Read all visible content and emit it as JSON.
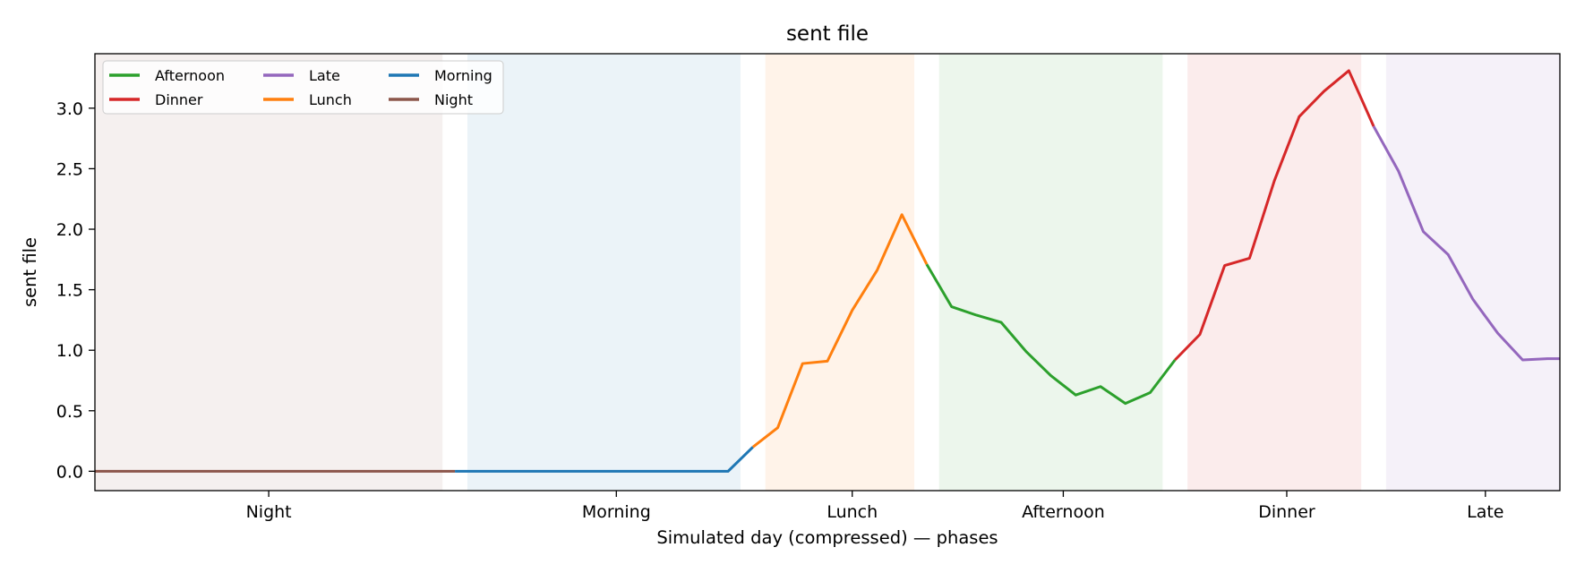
{
  "chart_data": {
    "type": "line",
    "title": "sent file",
    "xlabel": "Simulated day (compressed) — phases",
    "ylabel": "sent file",
    "xlim": [
      -0.5,
      58.5
    ],
    "ylim": [
      -0.16,
      3.45
    ],
    "y_ticks": [
      0.0,
      0.5,
      1.0,
      1.5,
      2.0,
      2.5,
      3.0
    ],
    "y_tick_labels": [
      "0.0",
      "0.5",
      "1.0",
      "1.5",
      "2.0",
      "2.5",
      "3.0"
    ],
    "x_ticks": [
      {
        "label": "Night",
        "x": 6.5
      },
      {
        "label": "Morning",
        "x": 20.5
      },
      {
        "label": "Lunch",
        "x": 30
      },
      {
        "label": "Afternoon",
        "x": 38.5
      },
      {
        "label": "Dinner",
        "x": 47.5
      },
      {
        "label": "Late",
        "x": 55.5
      }
    ],
    "bands": [
      {
        "phase": "Night",
        "start": -0.5,
        "end": 13.5,
        "color": "#8c564b"
      },
      {
        "phase": "Morning",
        "start": 14.5,
        "end": 25.5,
        "color": "#1f77b4"
      },
      {
        "phase": "Lunch",
        "start": 26.5,
        "end": 32.5,
        "color": "#ff7f0e"
      },
      {
        "phase": "Afternoon",
        "start": 33.5,
        "end": 42.5,
        "color": "#2ca02c"
      },
      {
        "phase": "Dinner",
        "start": 43.5,
        "end": 50.5,
        "color": "#d62728"
      },
      {
        "phase": "Late",
        "start": 51.5,
        "end": 58.5,
        "color": "#9467bd"
      }
    ],
    "series": [
      {
        "name": "Night",
        "color": "#8c564b",
        "x": [
          -0.5,
          0,
          1,
          2,
          3,
          4,
          5,
          6,
          7,
          8,
          9,
          10,
          11,
          12,
          13,
          14
        ],
        "y": [
          0,
          0,
          0,
          0,
          0,
          0,
          0,
          0,
          0,
          0,
          0,
          0,
          0,
          0,
          0,
          0
        ]
      },
      {
        "name": "Morning",
        "color": "#1f77b4",
        "x": [
          14,
          15,
          16,
          17,
          18,
          19,
          20,
          21,
          22,
          23,
          24,
          25,
          26
        ],
        "y": [
          0,
          0,
          0,
          0,
          0,
          0,
          0,
          0,
          0,
          0,
          0,
          0,
          0.2
        ]
      },
      {
        "name": "Lunch",
        "color": "#ff7f0e",
        "x": [
          26,
          27,
          28,
          29,
          30,
          31,
          32,
          33
        ],
        "y": [
          0.2,
          0.36,
          0.89,
          0.91,
          1.33,
          1.66,
          2.12,
          1.71
        ]
      },
      {
        "name": "Afternoon",
        "color": "#2ca02c",
        "x": [
          33,
          34,
          35,
          36,
          37,
          38,
          39,
          40,
          41,
          42,
          43
        ],
        "y": [
          1.71,
          1.36,
          1.29,
          1.23,
          0.99,
          0.79,
          0.63,
          0.7,
          0.56,
          0.65,
          0.92
        ]
      },
      {
        "name": "Dinner",
        "color": "#d62728",
        "x": [
          43,
          44,
          45,
          46,
          47,
          48,
          49,
          50,
          51
        ],
        "y": [
          0.92,
          1.13,
          1.7,
          1.76,
          2.4,
          2.93,
          3.14,
          3.31,
          2.85
        ]
      },
      {
        "name": "Late",
        "color": "#9467bd",
        "x": [
          51,
          52,
          53,
          54,
          55,
          56,
          57,
          58,
          58.5
        ],
        "y": [
          2.85,
          2.48,
          1.98,
          1.79,
          1.42,
          1.14,
          0.92,
          0.93,
          0.93
        ]
      }
    ],
    "legend": {
      "placement": "top-left",
      "columns": 3,
      "entries": [
        {
          "name": "Afternoon",
          "color": "#2ca02c"
        },
        {
          "name": "Dinner",
          "color": "#d62728"
        },
        {
          "name": "Late",
          "color": "#9467bd"
        },
        {
          "name": "Lunch",
          "color": "#ff7f0e"
        },
        {
          "name": "Morning",
          "color": "#1f77b4"
        },
        {
          "name": "Night",
          "color": "#8c564b"
        }
      ]
    },
    "grid": false
  }
}
